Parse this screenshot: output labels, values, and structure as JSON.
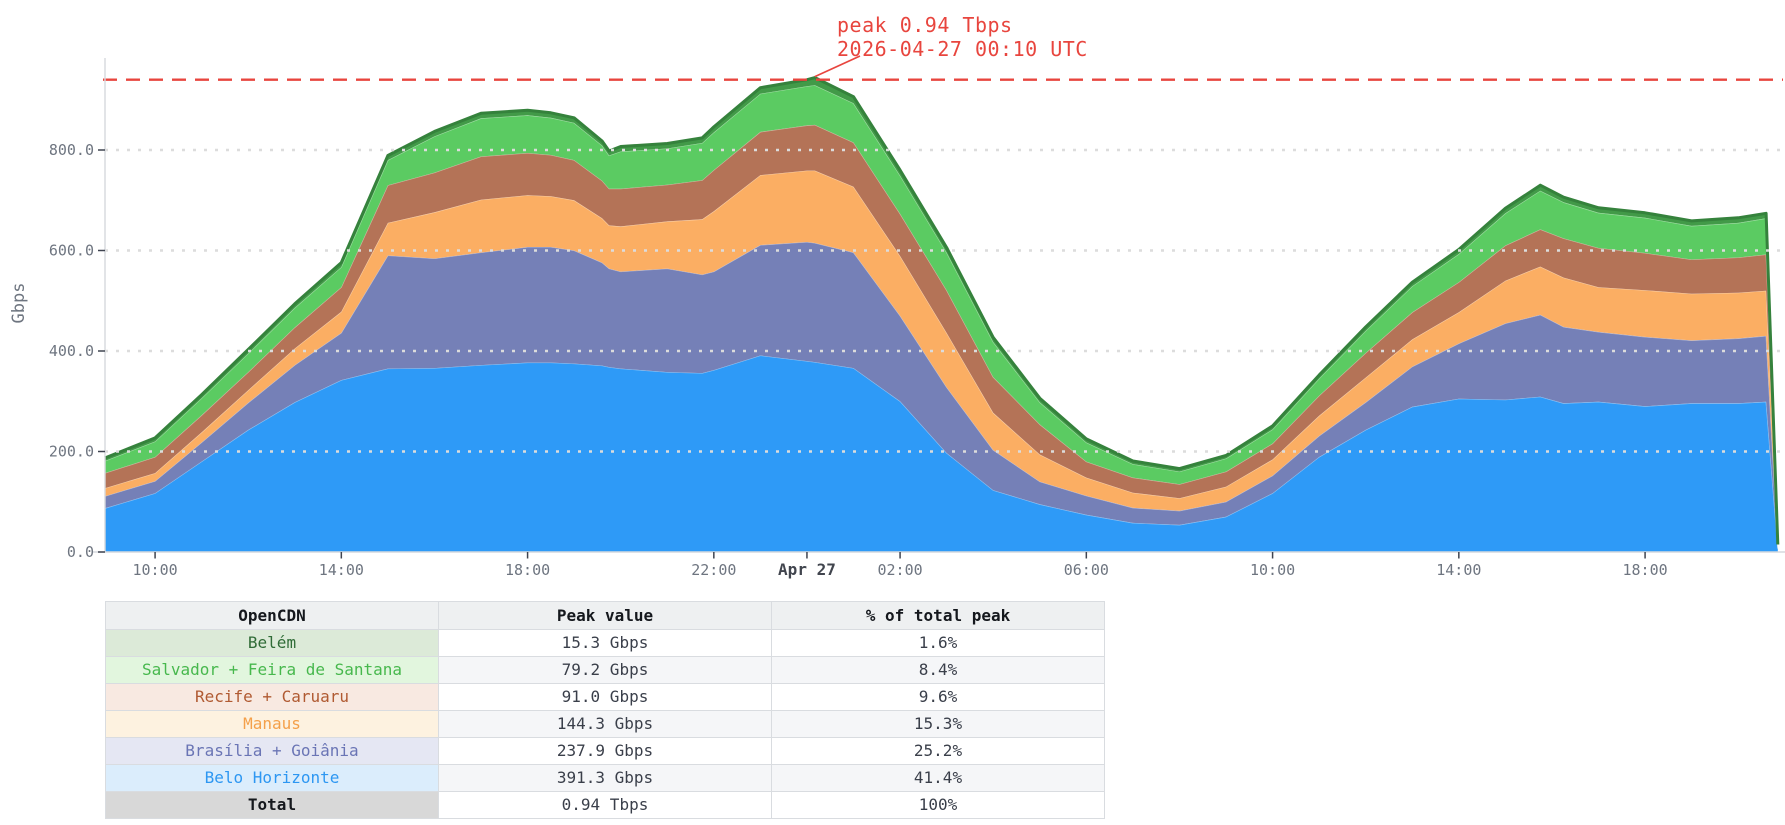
{
  "chart_data": {
    "type": "area",
    "stacked": true,
    "title": "",
    "ylabel": "Gbps",
    "ylim": [
      0,
      975
    ],
    "yticks": [
      0,
      200,
      400,
      600,
      800
    ],
    "ytick_labels": [
      "0.0",
      "200.0",
      "400.0",
      "600.0",
      "800.0"
    ],
    "grid": "dotted-horizontal",
    "legend_position": "none",
    "xticks": [
      {
        "t": 10,
        "label": "10:00",
        "bold": false
      },
      {
        "t": 14,
        "label": "14:00",
        "bold": false
      },
      {
        "t": 18,
        "label": "18:00",
        "bold": false
      },
      {
        "t": 22,
        "label": "22:00",
        "bold": false
      },
      {
        "t": 24,
        "label": "Apr 27",
        "bold": true
      },
      {
        "t": 26,
        "label": "02:00",
        "bold": false
      },
      {
        "t": 30,
        "label": "06:00",
        "bold": false
      },
      {
        "t": 34,
        "label": "10:00",
        "bold": false
      },
      {
        "t": 38,
        "label": "14:00",
        "bold": false
      },
      {
        "t": 42,
        "label": "18:00",
        "bold": false
      }
    ],
    "x_hours": [
      8.92,
      10,
      11,
      12,
      13,
      14,
      15,
      16,
      17,
      18,
      18.5,
      19,
      19.6,
      19.75,
      20,
      21,
      21.75,
      22,
      23,
      24,
      24.17,
      25,
      26,
      27,
      28,
      29,
      30,
      31,
      32,
      33,
      34,
      35,
      36,
      37,
      38,
      39,
      39.75,
      40.25,
      41,
      42,
      43,
      44,
      44.6,
      44.85
    ],
    "series": [
      {
        "name": "Belo Horizonte",
        "color": "#2e9af7",
        "edge": "rgba(255,255,255,0.4)",
        "values": [
          87,
          117,
          180,
          243,
          298,
          342,
          365,
          366,
          372,
          377,
          377,
          375,
          371,
          368,
          365,
          358,
          356,
          362,
          391,
          380,
          378,
          366,
          300,
          197,
          123,
          95,
          74,
          58,
          54,
          70,
          117,
          189,
          243,
          289,
          305,
          303,
          309,
          296,
          299,
          290,
          296,
          296,
          299,
          6
        ]
      },
      {
        "name": "Brasília + Goiânia",
        "color": "#7580b7",
        "edge": "rgba(255,255,255,0.4)",
        "values": [
          24,
          24,
          38,
          54,
          74,
          94,
          225,
          218,
          224,
          230,
          230,
          225,
          205,
          196,
          193,
          206,
          196,
          196,
          220,
          237,
          237,
          230,
          170,
          131,
          80,
          45,
          38,
          30,
          28,
          30,
          35,
          42,
          55,
          80,
          110,
          152,
          163,
          152,
          139,
          138,
          125,
          129,
          131,
          2
        ]
      },
      {
        "name": "Manaus",
        "color": "#fbae63",
        "edge": "rgba(255,255,255,0.4)",
        "values": [
          16,
          16,
          20,
          25,
          33,
          42,
          65,
          92,
          105,
          103,
          101,
          100,
          88,
          86,
          90,
          94,
          110,
          120,
          139,
          142,
          144,
          131,
          119,
          108,
          74,
          54,
          36,
          30,
          25,
          30,
          32,
          40,
          49,
          54,
          62,
          85,
          96,
          98,
          89,
          93,
          93,
          91,
          90,
          2
        ]
      },
      {
        "name": "Recife + Caruaru",
        "color": "#b47357",
        "edge": "rgba(255,255,255,0.4)",
        "values": [
          30,
          32,
          34,
          36,
          42,
          49,
          75,
          79,
          86,
          84,
          82,
          80,
          75,
          73,
          75,
          73,
          78,
          82,
          86,
          90,
          91,
          88,
          84,
          85,
          71,
          60,
          32,
          30,
          28,
          30,
          32,
          40,
          49,
          54,
          60,
          70,
          74,
          78,
          78,
          74,
          68,
          70,
          72,
          2
        ]
      },
      {
        "name": "Salvador + Feira de Santana",
        "color": "#5bcb62",
        "edge": "rgba(255,255,255,0.4)",
        "values": [
          24,
          31,
          34,
          37,
          39,
          40,
          50,
          72,
          76,
          75,
          74,
          74,
          70,
          66,
          74,
          72,
          74,
          75,
          76,
          78,
          79,
          78,
          76,
          75,
          70,
          44,
          38,
          27,
          25,
          26,
          28,
          34,
          44,
          52,
          56,
          64,
          77,
          72,
          70,
          70,
          67,
          69,
          72,
          2
        ]
      },
      {
        "name": "Belém",
        "color": "#429a48",
        "edge": "#35823c",
        "values": [
          6,
          7,
          7,
          8,
          8,
          9,
          9,
          10,
          10,
          10,
          10,
          10,
          9,
          9,
          10,
          10,
          10,
          11,
          12,
          13,
          15,
          13,
          11,
          10,
          9,
          8,
          7,
          6,
          6,
          6,
          7,
          7,
          8,
          8,
          9,
          10,
          11,
          10,
          10,
          10,
          10,
          10,
          10,
          1
        ]
      }
    ],
    "peak_line": {
      "value": 940,
      "color": "#e8453e",
      "label_line1": "peak  0.94 Tbps",
      "label_line2": "2026-04-27 00:10 UTC",
      "peak_t": 24.17
    },
    "colors": {
      "grid": "#dcdcdc",
      "spine": "#d6d9dd",
      "tick": "#3f4450",
      "tick_label": "#6e7580",
      "bold_label": "#41454e"
    }
  },
  "table": {
    "headers": [
      "OpenCDN",
      "Peak value",
      "% of total peak"
    ],
    "stripe_colors": [
      "#ffffff",
      "#f5f6f8"
    ],
    "rows": [
      {
        "name": "Belém",
        "peak": "15.3 Gbps",
        "pct": "1.6%",
        "text_color": "#2f6b36",
        "bg": "#dcead8",
        "bold": false
      },
      {
        "name": "Salvador + Feira de Santana",
        "peak": "79.2 Gbps",
        "pct": "8.4%",
        "text_color": "#47b84d",
        "bg": "#e2f6de",
        "bold": false
      },
      {
        "name": "Recife + Caruaru",
        "peak": "91.0 Gbps",
        "pct": "9.6%",
        "text_color": "#b05a32",
        "bg": "#f8e9e1",
        "bold": false
      },
      {
        "name": "Manaus",
        "peak": "144.3 Gbps",
        "pct": "15.3%",
        "text_color": "#f4a04a",
        "bg": "#fdf2e0",
        "bold": false
      },
      {
        "name": "Brasília + Goiânia",
        "peak": "237.9 Gbps",
        "pct": "25.2%",
        "text_color": "#6a75b5",
        "bg": "#e5e7f3",
        "bold": false
      },
      {
        "name": "Belo Horizonte",
        "peak": "391.3 Gbps",
        "pct": "41.4%",
        "text_color": "#2d97f2",
        "bg": "#dbedfc",
        "bold": false
      },
      {
        "name": "Total",
        "peak": "0.94 Tbps",
        "pct": "100%",
        "text_color": "#15181d",
        "bg": "#d8d8d8",
        "bold": true
      }
    ]
  }
}
